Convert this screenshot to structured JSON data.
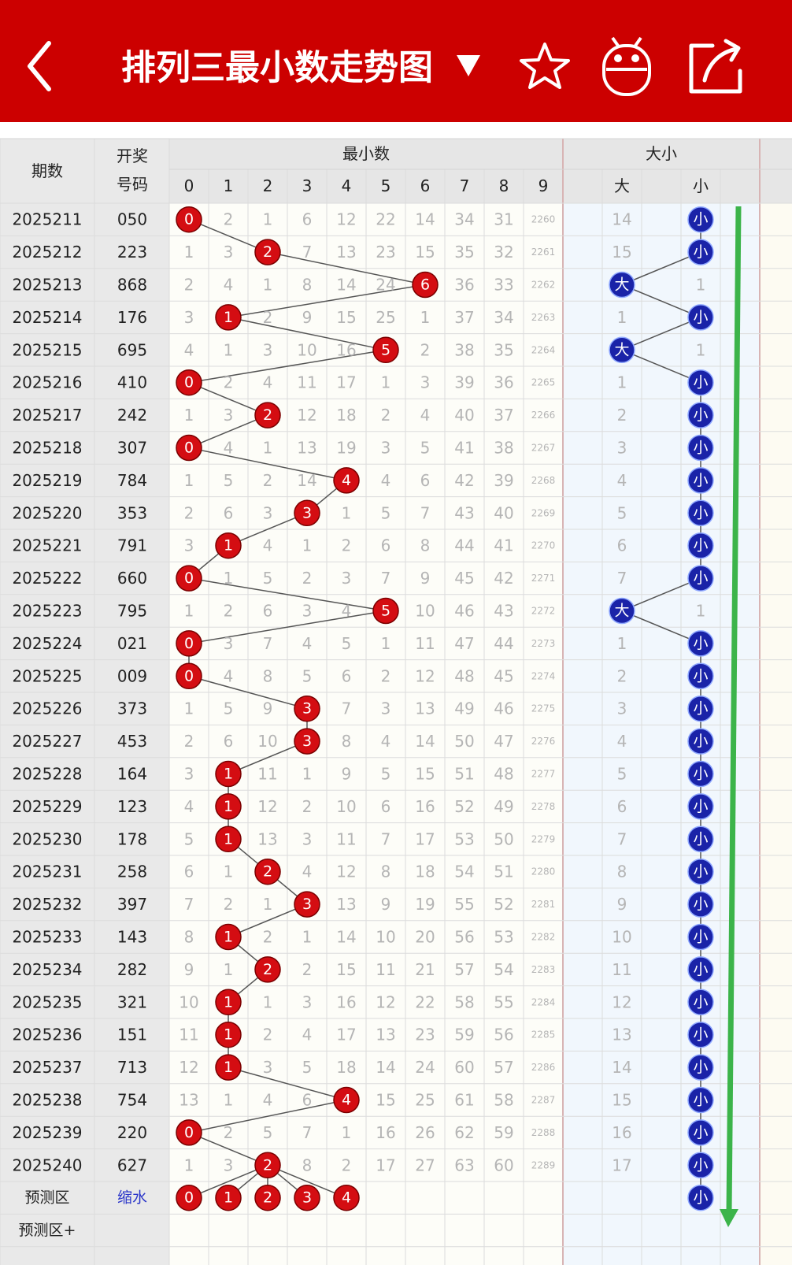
{
  "header": {
    "title": "排列三最小数走势图"
  },
  "table": {
    "headers": {
      "period": "期数",
      "number": [
        "开奖",
        "号码"
      ],
      "min_group": "最小数",
      "size_group": "大小",
      "digits": [
        "0",
        "1",
        "2",
        "3",
        "4",
        "5",
        "6",
        "7",
        "8",
        "9"
      ],
      "big": "大",
      "small": "小"
    },
    "rows": [
      {
        "period": "2025211",
        "number": "050",
        "cells": [
          {
            "ball": "0"
          },
          "2",
          "1",
          "6",
          "12",
          "22",
          "14",
          "34",
          "31",
          "2260"
        ],
        "big": "14",
        "small": {
          "ball": "小"
        }
      },
      {
        "period": "2025212",
        "number": "223",
        "cells": [
          "1",
          "3",
          {
            "ball": "2"
          },
          "7",
          "13",
          "23",
          "15",
          "35",
          "32",
          "2261"
        ],
        "big": "15",
        "small": {
          "ball": "小"
        }
      },
      {
        "period": "2025213",
        "number": "868",
        "cells": [
          "2",
          "4",
          "1",
          "8",
          "14",
          "24",
          {
            "ball": "6"
          },
          "36",
          "33",
          "2262"
        ],
        "big": {
          "ball": "大"
        },
        "small": "1"
      },
      {
        "period": "2025214",
        "number": "176",
        "cells": [
          "3",
          {
            "ball": "1"
          },
          "2",
          "9",
          "15",
          "25",
          "1",
          "37",
          "34",
          "2263"
        ],
        "big": "1",
        "small": {
          "ball": "小"
        }
      },
      {
        "period": "2025215",
        "number": "695",
        "cells": [
          "4",
          "1",
          "3",
          "10",
          "16",
          {
            "ball": "5"
          },
          "2",
          "38",
          "35",
          "2264"
        ],
        "big": {
          "ball": "大"
        },
        "small": "1"
      },
      {
        "period": "2025216",
        "number": "410",
        "cells": [
          {
            "ball": "0"
          },
          "2",
          "4",
          "11",
          "17",
          "1",
          "3",
          "39",
          "36",
          "2265"
        ],
        "big": "1",
        "small": {
          "ball": "小"
        }
      },
      {
        "period": "2025217",
        "number": "242",
        "cells": [
          "1",
          "3",
          {
            "ball": "2"
          },
          "12",
          "18",
          "2",
          "4",
          "40",
          "37",
          "2266"
        ],
        "big": "2",
        "small": {
          "ball": "小"
        }
      },
      {
        "period": "2025218",
        "number": "307",
        "cells": [
          {
            "ball": "0"
          },
          "4",
          "1",
          "13",
          "19",
          "3",
          "5",
          "41",
          "38",
          "2267"
        ],
        "big": "3",
        "small": {
          "ball": "小"
        }
      },
      {
        "period": "2025219",
        "number": "784",
        "cells": [
          "1",
          "5",
          "2",
          "14",
          {
            "ball": "4"
          },
          "4",
          "6",
          "42",
          "39",
          "2268"
        ],
        "big": "4",
        "small": {
          "ball": "小"
        }
      },
      {
        "period": "2025220",
        "number": "353",
        "cells": [
          "2",
          "6",
          "3",
          {
            "ball": "3"
          },
          "1",
          "5",
          "7",
          "43",
          "40",
          "2269"
        ],
        "big": "5",
        "small": {
          "ball": "小"
        }
      },
      {
        "period": "2025221",
        "number": "791",
        "cells": [
          "3",
          {
            "ball": "1"
          },
          "4",
          "1",
          "2",
          "6",
          "8",
          "44",
          "41",
          "2270"
        ],
        "big": "6",
        "small": {
          "ball": "小"
        }
      },
      {
        "period": "2025222",
        "number": "660",
        "cells": [
          {
            "ball": "0"
          },
          "1",
          "5",
          "2",
          "3",
          "7",
          "9",
          "45",
          "42",
          "2271"
        ],
        "big": "7",
        "small": {
          "ball": "小"
        }
      },
      {
        "period": "2025223",
        "number": "795",
        "cells": [
          "1",
          "2",
          "6",
          "3",
          "4",
          {
            "ball": "5"
          },
          "10",
          "46",
          "43",
          "2272"
        ],
        "big": {
          "ball": "大"
        },
        "small": "1"
      },
      {
        "period": "2025224",
        "number": "021",
        "cells": [
          {
            "ball": "0"
          },
          "3",
          "7",
          "4",
          "5",
          "1",
          "11",
          "47",
          "44",
          "2273"
        ],
        "big": "1",
        "small": {
          "ball": "小"
        }
      },
      {
        "period": "2025225",
        "number": "009",
        "cells": [
          {
            "ball": "0"
          },
          "4",
          "8",
          "5",
          "6",
          "2",
          "12",
          "48",
          "45",
          "2274"
        ],
        "big": "2",
        "small": {
          "ball": "小"
        }
      },
      {
        "period": "2025226",
        "number": "373",
        "cells": [
          "1",
          "5",
          "9",
          {
            "ball": "3"
          },
          "7",
          "3",
          "13",
          "49",
          "46",
          "2275"
        ],
        "big": "3",
        "small": {
          "ball": "小"
        }
      },
      {
        "period": "2025227",
        "number": "453",
        "cells": [
          "2",
          "6",
          "10",
          {
            "ball": "3"
          },
          "8",
          "4",
          "14",
          "50",
          "47",
          "2276"
        ],
        "big": "4",
        "small": {
          "ball": "小"
        }
      },
      {
        "period": "2025228",
        "number": "164",
        "cells": [
          "3",
          {
            "ball": "1"
          },
          "11",
          "1",
          "9",
          "5",
          "15",
          "51",
          "48",
          "2277"
        ],
        "big": "5",
        "small": {
          "ball": "小"
        }
      },
      {
        "period": "2025229",
        "number": "123",
        "cells": [
          "4",
          {
            "ball": "1"
          },
          "12",
          "2",
          "10",
          "6",
          "16",
          "52",
          "49",
          "2278"
        ],
        "big": "6",
        "small": {
          "ball": "小"
        }
      },
      {
        "period": "2025230",
        "number": "178",
        "cells": [
          "5",
          {
            "ball": "1"
          },
          "13",
          "3",
          "11",
          "7",
          "17",
          "53",
          "50",
          "2279"
        ],
        "big": "7",
        "small": {
          "ball": "小"
        }
      },
      {
        "period": "2025231",
        "number": "258",
        "cells": [
          "6",
          "1",
          {
            "ball": "2"
          },
          "4",
          "12",
          "8",
          "18",
          "54",
          "51",
          "2280"
        ],
        "big": "8",
        "small": {
          "ball": "小"
        }
      },
      {
        "period": "2025232",
        "number": "397",
        "cells": [
          "7",
          "2",
          "1",
          {
            "ball": "3"
          },
          "13",
          "9",
          "19",
          "55",
          "52",
          "2281"
        ],
        "big": "9",
        "small": {
          "ball": "小"
        }
      },
      {
        "period": "2025233",
        "number": "143",
        "cells": [
          "8",
          {
            "ball": "1"
          },
          "2",
          "1",
          "14",
          "10",
          "20",
          "56",
          "53",
          "2282"
        ],
        "big": "10",
        "small": {
          "ball": "小"
        }
      },
      {
        "period": "2025234",
        "number": "282",
        "cells": [
          "9",
          "1",
          {
            "ball": "2"
          },
          "2",
          "15",
          "11",
          "21",
          "57",
          "54",
          "2283"
        ],
        "big": "11",
        "small": {
          "ball": "小"
        }
      },
      {
        "period": "2025235",
        "number": "321",
        "cells": [
          "10",
          {
            "ball": "1"
          },
          "1",
          "3",
          "16",
          "12",
          "22",
          "58",
          "55",
          "2284"
        ],
        "big": "12",
        "small": {
          "ball": "小"
        }
      },
      {
        "period": "2025236",
        "number": "151",
        "cells": [
          "11",
          {
            "ball": "1"
          },
          "2",
          "4",
          "17",
          "13",
          "23",
          "59",
          "56",
          "2285"
        ],
        "big": "13",
        "small": {
          "ball": "小"
        }
      },
      {
        "period": "2025237",
        "number": "713",
        "cells": [
          "12",
          {
            "ball": "1"
          },
          "3",
          "5",
          "18",
          "14",
          "24",
          "60",
          "57",
          "2286"
        ],
        "big": "14",
        "small": {
          "ball": "小"
        }
      },
      {
        "period": "2025238",
        "number": "754",
        "cells": [
          "13",
          "1",
          "4",
          "6",
          {
            "ball": "4"
          },
          "15",
          "25",
          "61",
          "58",
          "2287"
        ],
        "big": "15",
        "small": {
          "ball": "小"
        }
      },
      {
        "period": "2025239",
        "number": "220",
        "cells": [
          {
            "ball": "0"
          },
          "2",
          "5",
          "7",
          "1",
          "16",
          "26",
          "62",
          "59",
          "2288"
        ],
        "big": "16",
        "small": {
          "ball": "小"
        }
      },
      {
        "period": "2025240",
        "number": "627",
        "cells": [
          "1",
          "3",
          {
            "ball": "2"
          },
          "8",
          "2",
          "17",
          "27",
          "63",
          "60",
          "2289"
        ],
        "big": "17",
        "small": {
          "ball": "小"
        }
      }
    ],
    "prediction": {
      "label": "预测区",
      "tag": "缩水",
      "balls": [
        "0",
        "1",
        "2",
        "3",
        "4"
      ],
      "small": "小"
    },
    "prediction_plus": {
      "label": "预测区+"
    }
  }
}
